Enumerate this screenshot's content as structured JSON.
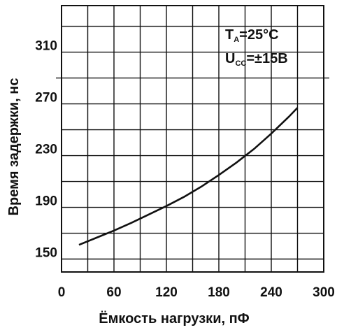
{
  "chart_data": {
    "type": "line",
    "title": "",
    "xlabel": "Ёмкость нагрузки, пФ",
    "ylabel": "Время задержки, нс",
    "x_ticks": [
      "0",
      "60",
      "120",
      "180",
      "240",
      "300"
    ],
    "y_ticks": [
      "150",
      "190",
      "230",
      "270",
      "310"
    ],
    "xlim": [
      0,
      300
    ],
    "ylim": [
      140,
      346
    ],
    "grid": true,
    "annotations": {
      "temp_main": "T",
      "temp_sub": "A",
      "temp_value": "=25°C",
      "volt_main": "U",
      "volt_sub": "CC",
      "volt_value": "=±15В"
    },
    "series": [
      {
        "x": [
          20,
          40,
          60,
          80,
          100,
          120,
          140,
          160,
          180,
          200,
          220,
          240,
          260,
          270
        ],
        "y": [
          161,
          166.5,
          172,
          178,
          184.5,
          191,
          198,
          206,
          215,
          224.5,
          235,
          247,
          260,
          267
        ]
      }
    ]
  }
}
